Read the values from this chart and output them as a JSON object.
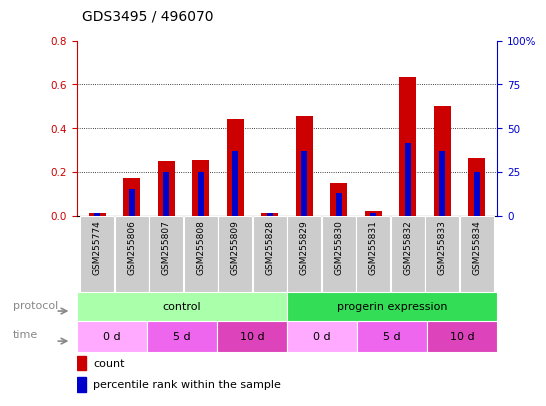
{
  "title": "GDS3495 / 496070",
  "samples": [
    "GSM255774",
    "GSM255806",
    "GSM255807",
    "GSM255808",
    "GSM255809",
    "GSM255828",
    "GSM255829",
    "GSM255830",
    "GSM255831",
    "GSM255832",
    "GSM255833",
    "GSM255834"
  ],
  "red_values": [
    0.01,
    0.17,
    0.25,
    0.255,
    0.44,
    0.01,
    0.455,
    0.15,
    0.02,
    0.635,
    0.5,
    0.265
  ],
  "blue_values": [
    0.01,
    0.12,
    0.2,
    0.2,
    0.295,
    0.01,
    0.295,
    0.105,
    0.01,
    0.33,
    0.295,
    0.2
  ],
  "left_ylim": [
    0,
    0.8
  ],
  "right_ylim": [
    0,
    100
  ],
  "left_yticks": [
    0,
    0.2,
    0.4,
    0.6,
    0.8
  ],
  "right_yticks": [
    0,
    25,
    50,
    75,
    100
  ],
  "right_yticklabels": [
    "0",
    "25",
    "50",
    "75",
    "100%"
  ],
  "protocol_groups": [
    {
      "label": "control",
      "start": 0,
      "end": 6,
      "color": "#AAFFAA"
    },
    {
      "label": "progerin expression",
      "start": 6,
      "end": 12,
      "color": "#33DD55"
    }
  ],
  "time_groups": [
    {
      "label": "0 d",
      "start": 0,
      "end": 2,
      "color": "#FFAAFF"
    },
    {
      "label": "5 d",
      "start": 2,
      "end": 4,
      "color": "#EE66EE"
    },
    {
      "label": "10 d",
      "start": 4,
      "end": 6,
      "color": "#DD44BB"
    },
    {
      "label": "0 d",
      "start": 6,
      "end": 8,
      "color": "#FFAAFF"
    },
    {
      "label": "5 d",
      "start": 8,
      "end": 10,
      "color": "#EE66EE"
    },
    {
      "label": "10 d",
      "start": 10,
      "end": 12,
      "color": "#DD44BB"
    }
  ],
  "bar_color": "#CC0000",
  "blue_color": "#0000CC",
  "bg_color": "#FFFFFF",
  "sample_bg_color": "#CCCCCC",
  "left_label_color": "#CC0000",
  "right_label_color": "#0000CC",
  "bar_width": 0.5,
  "blue_bar_width": 0.18,
  "grid_dotted_color": "#555555",
  "label_color": "#888888"
}
